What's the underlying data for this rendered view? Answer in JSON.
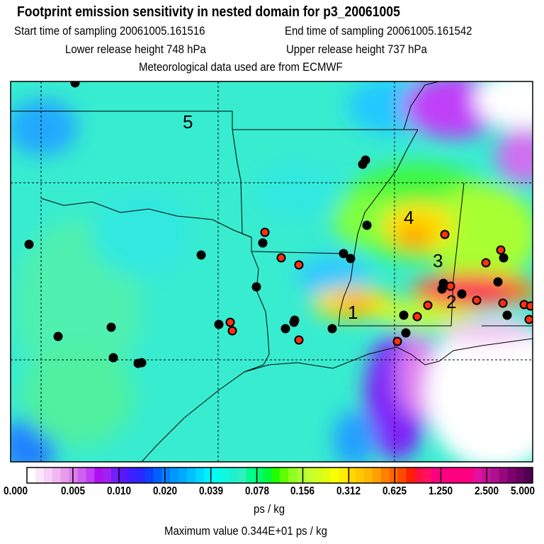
{
  "title": "Footprint emission sensitivity in nested domain for p3_20061005",
  "start_time": "Start time of sampling 20061005.161516",
  "end_time": "End time of sampling 20061005.161542",
  "lower_height": "Lower release height  748 hPa",
  "upper_height": "Upper release height  737 hPa",
  "met_data": "Meteorological data used are from ECMWF",
  "region_labels": [
    "1",
    "2",
    "3",
    "4",
    "5"
  ],
  "colorbar": {
    "ticks": [
      "0.000",
      "0.005",
      "0.010",
      "0.020",
      "0.039",
      "0.078",
      "0.156",
      "0.312",
      "0.625",
      "1.250",
      "2.500",
      "5.000"
    ],
    "colors": [
      "#ffffff",
      "#fbe6fb",
      "#f6d0f6",
      "#f0b8f0",
      "#e79be9",
      "#dc80ec",
      "#d060f2",
      "#c040f8",
      "#b010f0",
      "#a020f0",
      "#7020f8",
      "#5818ff",
      "#4020ff",
      "#2828ff",
      "#1040ff",
      "#0060ff",
      "#0080ff",
      "#0096ff",
      "#00aaff",
      "#00c0ff",
      "#00d8ff",
      "#00f0ff",
      "#00fff0",
      "#10f8e0",
      "#20f0d0",
      "#30f0c0",
      "#00ff90",
      "#00ff70",
      "#00f840",
      "#20ff00",
      "#60ff00",
      "#90ff20",
      "#a8ff30",
      "#c0ff30",
      "#d0ff20",
      "#e0ff10",
      "#f8ff00",
      "#ffee00",
      "#ffd800",
      "#ffc800",
      "#ffb800",
      "#ffa000",
      "#ff8000",
      "#ff6800",
      "#ff4800",
      "#ff2000",
      "#ff1040",
      "#ff1060",
      "#ff0080",
      "#ff0080",
      "#ff0080",
      "#ff0080",
      "#ff0080",
      "#e010a0",
      "#c81098",
      "#b01090",
      "#980880",
      "#800070",
      "#680060",
      "#500050"
    ],
    "unit": "ps / kg"
  },
  "max_value": "Maximum value  0.344E+01 ps / kg",
  "sites_black": [
    [
      106,
      117
    ],
    [
      41,
      345
    ],
    [
      284,
      360
    ],
    [
      82,
      475
    ],
    [
      157,
      462
    ],
    [
      160,
      505
    ],
    [
      195,
      513
    ],
    [
      200,
      512
    ],
    [
      309,
      458
    ],
    [
      362,
      405
    ],
    [
      371,
      343
    ],
    [
      403,
      464
    ],
    [
      415,
      455
    ],
    [
      416,
      452
    ],
    [
      469,
      464
    ],
    [
      485,
      358
    ],
    [
      495,
      365
    ],
    [
      518,
      318
    ],
    [
      512,
      232
    ],
    [
      516,
      226
    ],
    [
      570,
      445
    ],
    [
      573,
      470
    ],
    [
      626,
      400
    ],
    [
      624,
      408
    ],
    [
      652,
      415
    ],
    [
      703,
      398
    ],
    [
      711,
      364
    ],
    [
      716,
      445
    ]
  ],
  "sites_red": [
    [
      374,
      328
    ],
    [
      397,
      364
    ],
    [
      422,
      374
    ],
    [
      325,
      455
    ],
    [
      328,
      467
    ],
    [
      422,
      480
    ],
    [
      561,
      482
    ],
    [
      589,
      447
    ],
    [
      604,
      431
    ],
    [
      628,
      331
    ],
    [
      636,
      404
    ],
    [
      673,
      424
    ],
    [
      686,
      371
    ],
    [
      707,
      353
    ],
    [
      710,
      428
    ],
    [
      740,
      430
    ],
    [
      749,
      432
    ],
    [
      747,
      451
    ]
  ],
  "colors": {
    "base": "#38ecd0",
    "marker_red": "#ff3010",
    "marker_black": "#000000"
  }
}
